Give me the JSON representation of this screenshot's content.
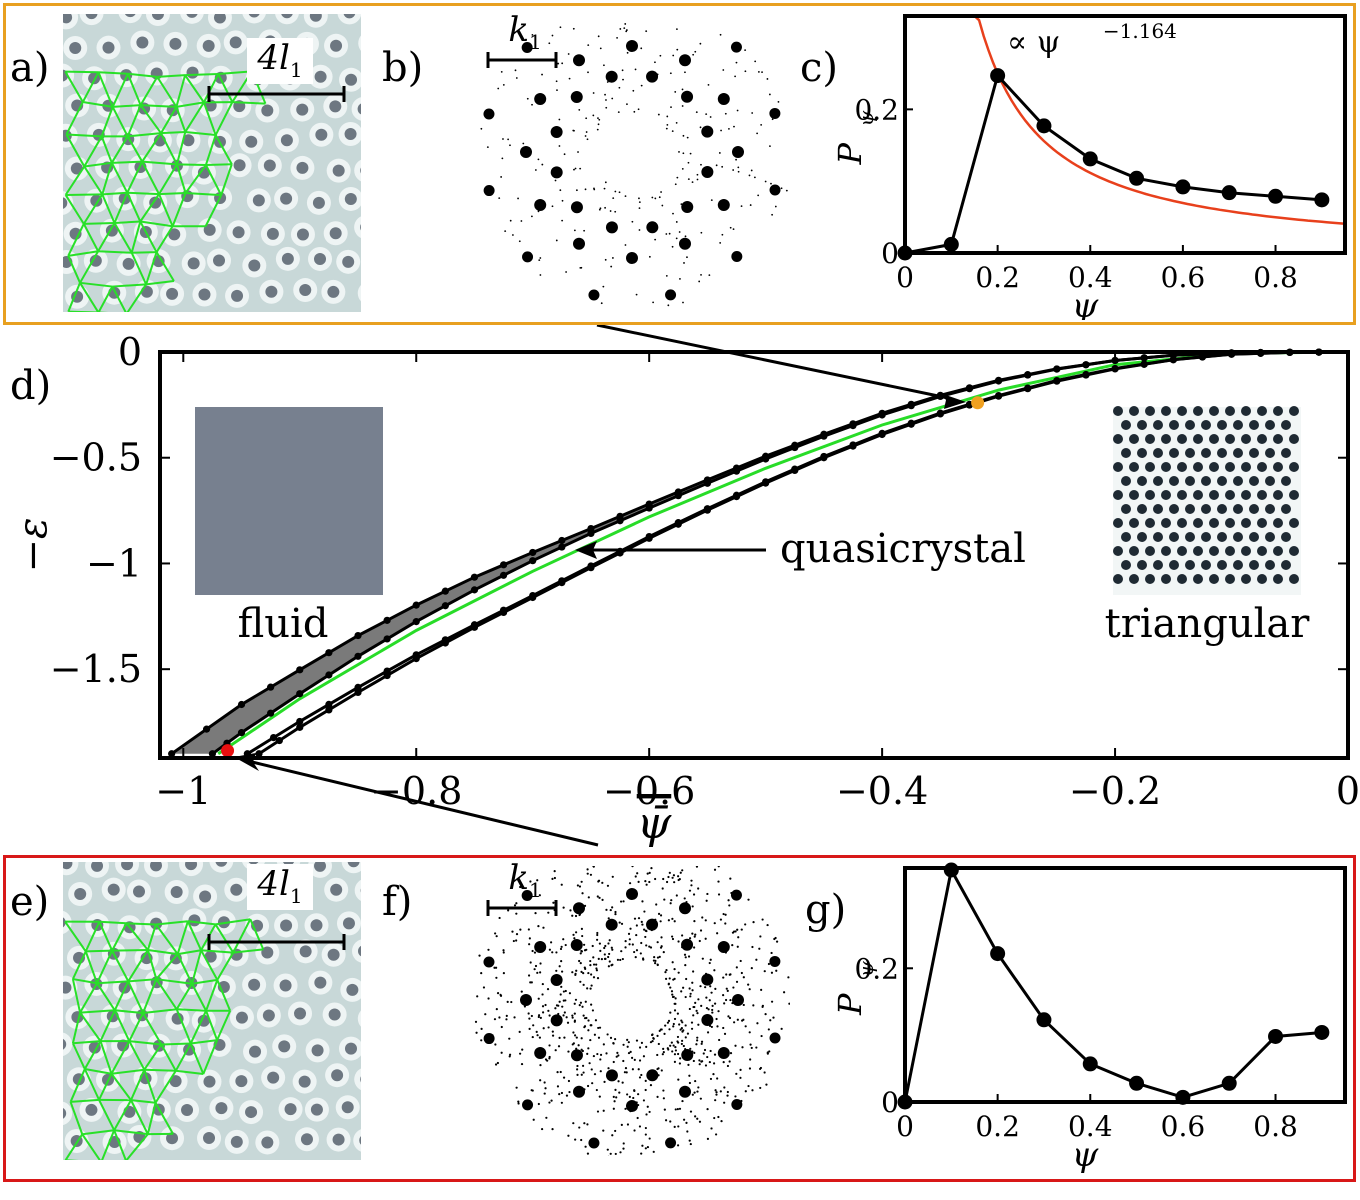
{
  "panels": {
    "a": "a)",
    "b": "b)",
    "c": "c)",
    "d": "d)",
    "e": "e)",
    "f": "f)",
    "g": "g)"
  },
  "scale_bars": {
    "real_space": "4l",
    "real_space_sub": "1",
    "reciprocal": "k",
    "reciprocal_sub": "1"
  },
  "annotations": {
    "power_law": "∝ ψ",
    "power_law_exp": "−1.164",
    "quasicrystal": "quasicrystal",
    "fluid": "fluid",
    "triangular": "triangular"
  },
  "colors": {
    "top_frame": "#e8a020",
    "bottom_frame": "#d81818",
    "fit_curve": "#e8401c",
    "green_line": "#28dc28",
    "fluid_box": "#77808f",
    "coexistence_fill": "#7a7a7a",
    "orange_marker": "#f0a020",
    "red_marker": "#e81010"
  },
  "chart_data": [
    {
      "id": "c",
      "type": "line",
      "xlabel": "ψ",
      "ylabel": "P",
      "ylabel_sub": "ψ",
      "xlim": [
        0,
        0.95
      ],
      "ylim": [
        0,
        0.33
      ],
      "xticks": [
        0,
        0.2,
        0.4,
        0.6,
        0.8
      ],
      "xtick_labels": [
        "0",
        "0.2",
        "0.4",
        "0.6",
        "0.8"
      ],
      "yticks": [
        0,
        0.2
      ],
      "ytick_labels": [
        "0",
        "0.2"
      ],
      "series": [
        {
          "name": "P_psi",
          "x": [
            0,
            0.1,
            0.2,
            0.3,
            0.4,
            0.5,
            0.6,
            0.7,
            0.8,
            0.9
          ],
          "values": [
            0.0,
            0.012,
            0.247,
            0.177,
            0.131,
            0.104,
            0.092,
            0.084,
            0.079,
            0.074
          ]
        },
        {
          "name": "fit ∝ ψ^-1.164",
          "coefficient": 0.0384,
          "exponent": -1.164,
          "x_range": [
            0.15,
            0.95
          ]
        }
      ]
    },
    {
      "id": "d",
      "type": "line",
      "xlabel": "ψ̄",
      "ylabel": "−ε",
      "xlim": [
        -1.02,
        0
      ],
      "ylim": [
        -1.92,
        0
      ],
      "xticks": [
        -1,
        -0.8,
        -0.6,
        -0.4,
        -0.2,
        0
      ],
      "xtick_labels": [
        "−1",
        "−0.8",
        "−0.6",
        "−0.4",
        "−0.2",
        "0"
      ],
      "yticks": [
        0,
        -0.5,
        -1,
        -1.5
      ],
      "ytick_labels": [
        "0",
        "−0.5",
        "−1",
        "−1.5"
      ],
      "series": [
        {
          "name": "fluid-QC boundary (outer)",
          "x": [
            -1.01,
            -0.95,
            -0.9,
            -0.85,
            -0.8,
            -0.75,
            -0.7,
            -0.65,
            -0.6,
            -0.55,
            -0.5,
            -0.45,
            -0.4,
            -0.35,
            -0.3,
            -0.25,
            -0.2,
            -0.15,
            -0.1,
            -0.05,
            0
          ],
          "values": [
            -1.9,
            -1.667,
            -1.503,
            -1.341,
            -1.197,
            -1.065,
            -0.948,
            -0.835,
            -0.719,
            -0.605,
            -0.493,
            -0.389,
            -0.29,
            -0.205,
            -0.134,
            -0.08,
            -0.04,
            -0.015,
            -0.004,
            -0.001,
            0
          ]
        },
        {
          "name": "fluid-QC boundary (inner)",
          "x": [
            -0.975,
            -0.95,
            -0.9,
            -0.85,
            -0.8,
            -0.75,
            -0.7,
            -0.65,
            -0.6,
            -0.55,
            -0.5,
            -0.45,
            -0.4,
            -0.35,
            -0.3,
            -0.25,
            -0.2,
            -0.15,
            -0.1,
            -0.05,
            0
          ],
          "values": [
            -1.9,
            -1.8,
            -1.616,
            -1.439,
            -1.275,
            -1.125,
            -0.987,
            -0.858,
            -0.738,
            -0.621,
            -0.506,
            -0.398,
            -0.298,
            -0.21,
            -0.137,
            -0.081,
            -0.04,
            -0.015,
            -0.004,
            -0.001,
            0
          ]
        },
        {
          "name": "QC-triangular boundary (inner)",
          "x": [
            -0.945,
            -0.9,
            -0.85,
            -0.8,
            -0.75,
            -0.7,
            -0.65,
            -0.6,
            -0.55,
            -0.5,
            -0.45,
            -0.4,
            -0.35,
            -0.3,
            -0.25,
            -0.2,
            -0.15,
            -0.1,
            -0.05,
            0
          ],
          "values": [
            -1.9,
            -1.747,
            -1.586,
            -1.432,
            -1.29,
            -1.152,
            -1.012,
            -0.873,
            -0.741,
            -0.614,
            -0.494,
            -0.385,
            -0.289,
            -0.206,
            -0.135,
            -0.078,
            -0.036,
            -0.01,
            -0.002,
            0
          ]
        },
        {
          "name": "QC-triangular boundary (outer)",
          "x": [
            -0.935,
            -0.9,
            -0.85,
            -0.8,
            -0.75,
            -0.7,
            -0.65,
            -0.6,
            -0.55,
            -0.5,
            -0.45,
            -0.4,
            -0.35,
            -0.3,
            -0.25,
            -0.2,
            -0.15,
            -0.1,
            -0.05,
            0
          ],
          "values": [
            -1.9,
            -1.775,
            -1.61,
            -1.45,
            -1.302,
            -1.161,
            -1.02,
            -0.881,
            -0.748,
            -0.62,
            -0.5,
            -0.39,
            -0.293,
            -0.209,
            -0.138,
            -0.08,
            -0.037,
            -0.011,
            -0.002,
            0
          ]
        },
        {
          "name": "green line",
          "x": [
            -0.97,
            -0.9,
            -0.8,
            -0.7,
            -0.6,
            -0.5,
            -0.4,
            -0.3,
            -0.2,
            -0.1,
            0
          ],
          "values": [
            -1.9,
            -1.64,
            -1.317,
            -1.037,
            -0.78,
            -0.55,
            -0.345,
            -0.18,
            -0.06,
            -0.006,
            0
          ]
        }
      ],
      "markers": [
        {
          "name": "orange",
          "x": -0.318,
          "y": -0.24
        },
        {
          "name": "red",
          "x": -0.962,
          "y": -1.885
        }
      ]
    },
    {
      "id": "g",
      "type": "line",
      "xlabel": "ψ",
      "ylabel": "P",
      "ylabel_sub": "ψ",
      "xlim": [
        0,
        0.95
      ],
      "ylim": [
        0,
        0.35
      ],
      "xticks": [
        0,
        0.2,
        0.4,
        0.6,
        0.8
      ],
      "xtick_labels": [
        "0",
        "0.2",
        "0.4",
        "0.6",
        "0.8"
      ],
      "yticks": [
        0,
        0.2
      ],
      "ytick_labels": [
        "0",
        "0.2"
      ],
      "series": [
        {
          "name": "P_psi",
          "x": [
            0,
            0.1,
            0.2,
            0.3,
            0.4,
            0.5,
            0.6,
            0.7,
            0.8,
            0.9
          ],
          "values": [
            0.0,
            0.347,
            0.222,
            0.123,
            0.057,
            0.028,
            0.007,
            0.028,
            0.098,
            0.104
          ]
        }
      ]
    }
  ]
}
